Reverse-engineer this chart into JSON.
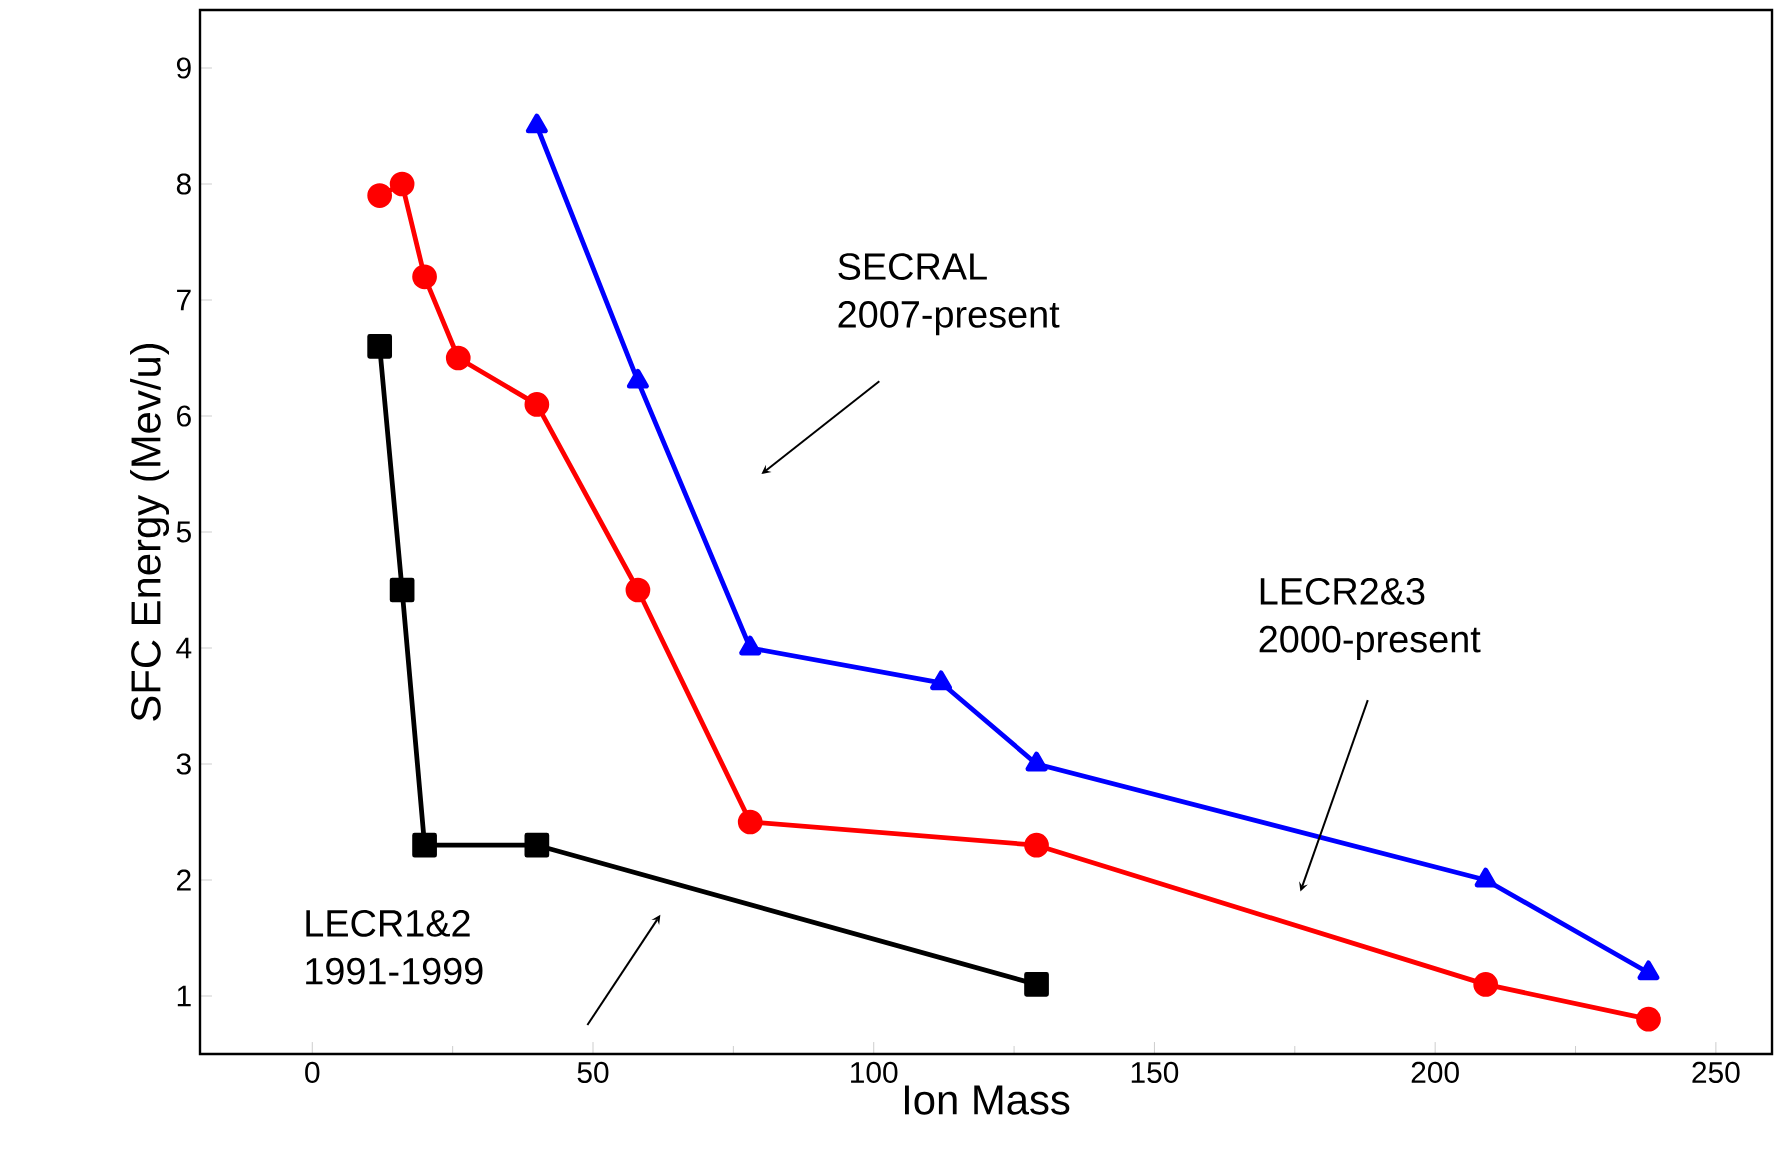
{
  "chart_data": {
    "type": "line",
    "xlabel": "Ion Mass",
    "ylabel": "SFC Energy (Mev/u)",
    "xlim": [
      -20,
      260
    ],
    "ylim": [
      0.5,
      9.5
    ],
    "xticks": [
      0,
      50,
      100,
      150,
      200,
      250
    ],
    "yticks": [
      1,
      2,
      3,
      4,
      5,
      6,
      7,
      8,
      9
    ],
    "grid": false,
    "line_style": "solid",
    "series": [
      {
        "color": "#000000",
        "marker": "square",
        "x": [
          12,
          16,
          20,
          40,
          129
        ],
        "values": [
          6.6,
          4.5,
          2.3,
          2.3,
          1.1
        ]
      },
      {
        "color": "#ff0000",
        "marker": "circle",
        "x": [
          12,
          16,
          20,
          26,
          40,
          58,
          78,
          129,
          209,
          238
        ],
        "values": [
          7.9,
          8.0,
          7.2,
          6.5,
          6.1,
          4.5,
          2.5,
          2.3,
          1.1,
          0.8
        ]
      },
      {
        "color": "#0000ff",
        "marker": "triangle",
        "x": [
          40,
          58,
          78,
          112,
          129,
          209,
          238
        ],
        "values": [
          8.5,
          6.3,
          4.0,
          3.7,
          3.0,
          2.0,
          1.2
        ]
      }
    ],
    "annotations": [
      "LECR1&2 1991-1999",
      "LECR2&3 2000-present",
      "SECRAL 2007-present"
    ]
  }
}
